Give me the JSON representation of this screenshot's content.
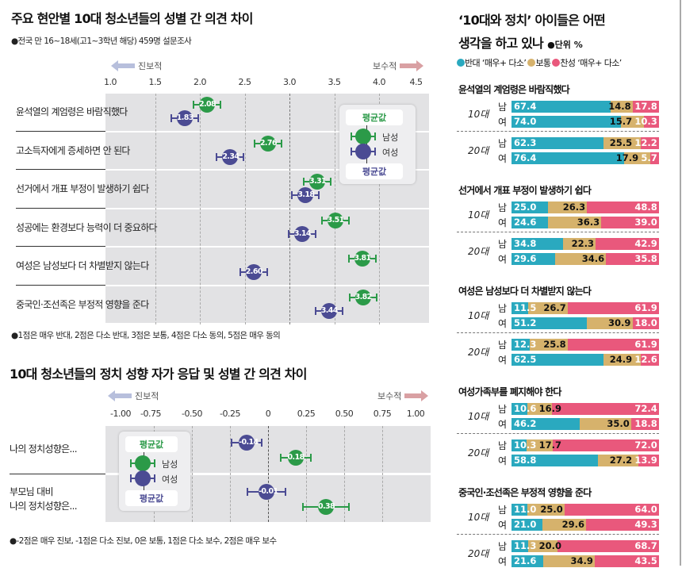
{
  "colors": {
    "male": "#2b9a48",
    "female": "#4b4b93",
    "oppose": "#2aa9bf",
    "neutral": "#d6b26c",
    "agree": "#e9587c",
    "progressive": "#b7bfdc",
    "conservative": "#d9a0a3"
  },
  "chart_data": [
    {
      "type": "scatter",
      "title": "주요 현안별 10대 청소년들의 성별 간 의견 차이",
      "subtitle": "●전국 만 16~18세(고1~3학년 해당) 459명 설문조사",
      "left_direction": "진보적",
      "right_direction": "보수적",
      "xlim": [
        1.0,
        4.5
      ],
      "ticks": [
        "1.0",
        "1.5",
        "2.0",
        "2.5",
        "3.0",
        "3.5",
        "4.0",
        "4.5"
      ],
      "legend": {
        "top": "평균값",
        "male": "남성",
        "female": "여성",
        "bottom": "평균값",
        "placement": "top-right"
      },
      "categories": [
        "윤석열의 계엄령은 바람직했다",
        "고소득자에게 증세하면 안 된다",
        "선거에서 개표 부정이 발생하기 쉽다",
        "성공에는 환경보다 능력이 더 중요하다",
        "여성은 남성보다 더 차별받지 않는다",
        "중국인·조선족은 부정적 영향을 준다"
      ],
      "series": [
        {
          "name": "남성",
          "values": [
            2.08,
            2.76,
            3.31,
            3.51,
            3.81,
            3.82
          ],
          "labels": [
            "2.08",
            "2.76",
            "3.31",
            "3.51",
            "3.81",
            "3.82"
          ]
        },
        {
          "name": "여성",
          "values": [
            1.83,
            2.34,
            3.18,
            3.14,
            2.6,
            3.44
          ],
          "labels": [
            "1.83",
            "2.34",
            "3.18",
            "3.14",
            "2.60",
            "3.44"
          ]
        }
      ],
      "footnote": "●1점은 매우 반대, 2점은 다소 반대, 3점은 보통, 4점은 다소 동의, 5점은 매우 동의"
    },
    {
      "type": "scatter",
      "title": "10대 청소년들의 정치 성향 자가 응답 및 성별 간 의견 차이",
      "left_direction": "진보적",
      "right_direction": "보수적",
      "xlim": [
        -1.0,
        1.0
      ],
      "ticks": [
        "-1.00",
        "-0.75",
        "-0.50",
        "-0.25",
        "0",
        "0.25",
        "0.50",
        "0.75",
        "1.00"
      ],
      "legend": {
        "top": "평균값",
        "male": "남성",
        "female": "여성",
        "bottom": "평균값",
        "placement": "top-left"
      },
      "categories": [
        "나의 정치성향은...",
        "부모님 대비\n나의 정치성향은..."
      ],
      "series": [
        {
          "name": "여성",
          "values": [
            -0.14,
            -0.01
          ],
          "labels": [
            "-0.14",
            "-0.01"
          ]
        },
        {
          "name": "남성",
          "values": [
            0.18,
            0.38
          ],
          "labels": [
            "0.18",
            "0.38"
          ]
        }
      ],
      "footnote": "●-2점은 매우 진보, -1점은 다소 진보, 0은 보통, 1점은 다소 보수, 2점은 매우 보수"
    },
    {
      "type": "bar",
      "stacked": true,
      "title_line1": "‘10대와 정치’ 아이들은 어떤",
      "title_line2": "생각을 하고 있나",
      "unit": "●단위 %",
      "legend": [
        {
          "name": "반대 ‘매우+ 다소’",
          "color": "oppose"
        },
        {
          "name": "보통",
          "color": "neutral"
        },
        {
          "name": "찬성 ‘매우+ 다소’",
          "color": "agree"
        }
      ],
      "groups": [
        {
          "title": "윤석열의 계엄령은 바람직했다",
          "ages": [
            {
              "age": "10대",
              "rows": [
                {
                  "sex": "남",
                  "values": [
                    67.4,
                    14.8,
                    17.8
                  ]
                },
                {
                  "sex": "여",
                  "values": [
                    74.0,
                    15.7,
                    10.3
                  ]
                }
              ]
            },
            {
              "age": "20대",
              "rows": [
                {
                  "sex": "남",
                  "values": [
                    62.3,
                    25.5,
                    12.2
                  ]
                },
                {
                  "sex": "여",
                  "values": [
                    76.4,
                    17.9,
                    5.7
                  ]
                }
              ]
            }
          ]
        },
        {
          "title": "선거에서 개표 부정이 발생하기 쉽다",
          "ages": [
            {
              "age": "10대",
              "rows": [
                {
                  "sex": "남",
                  "values": [
                    25.0,
                    26.3,
                    48.8
                  ]
                },
                {
                  "sex": "여",
                  "values": [
                    24.6,
                    36.3,
                    39.0
                  ]
                }
              ]
            },
            {
              "age": "20대",
              "rows": [
                {
                  "sex": "남",
                  "values": [
                    34.8,
                    22.3,
                    42.9
                  ]
                },
                {
                  "sex": "여",
                  "values": [
                    29.6,
                    34.6,
                    35.8
                  ]
                }
              ]
            }
          ]
        },
        {
          "title": "여성은 남성보다 더 차별받지 않는다",
          "ages": [
            {
              "age": "10대",
              "rows": [
                {
                  "sex": "남",
                  "values": [
                    11.5,
                    26.7,
                    61.9
                  ]
                },
                {
                  "sex": "여",
                  "values": [
                    51.2,
                    30.9,
                    18.0
                  ]
                }
              ]
            },
            {
              "age": "20대",
              "rows": [
                {
                  "sex": "남",
                  "values": [
                    12.3,
                    25.8,
                    61.9
                  ]
                },
                {
                  "sex": "여",
                  "values": [
                    62.5,
                    24.9,
                    12.6
                  ]
                }
              ]
            }
          ]
        },
        {
          "title": "여성가족부를 폐지해야 한다",
          "ages": [
            {
              "age": "10대",
              "rows": [
                {
                  "sex": "남",
                  "values": [
                    10.6,
                    16.9,
                    72.4
                  ]
                },
                {
                  "sex": "여",
                  "values": [
                    46.2,
                    35.0,
                    18.8
                  ]
                }
              ]
            },
            {
              "age": "20대",
              "rows": [
                {
                  "sex": "남",
                  "values": [
                    10.3,
                    17.7,
                    72.0
                  ]
                },
                {
                  "sex": "여",
                  "values": [
                    58.8,
                    27.2,
                    13.9
                  ]
                }
              ]
            }
          ]
        },
        {
          "title": "중국인·조선족은 부정적 영향을 준다",
          "ages": [
            {
              "age": "10대",
              "rows": [
                {
                  "sex": "남",
                  "values": [
                    11.0,
                    25.0,
                    64.0
                  ]
                },
                {
                  "sex": "여",
                  "values": [
                    21.0,
                    29.6,
                    49.3
                  ]
                }
              ]
            },
            {
              "age": "20대",
              "rows": [
                {
                  "sex": "남",
                  "values": [
                    11.3,
                    20.0,
                    68.7
                  ]
                },
                {
                  "sex": "여",
                  "values": [
                    21.6,
                    34.9,
                    43.5
                  ]
                }
              ]
            }
          ]
        }
      ]
    }
  ]
}
